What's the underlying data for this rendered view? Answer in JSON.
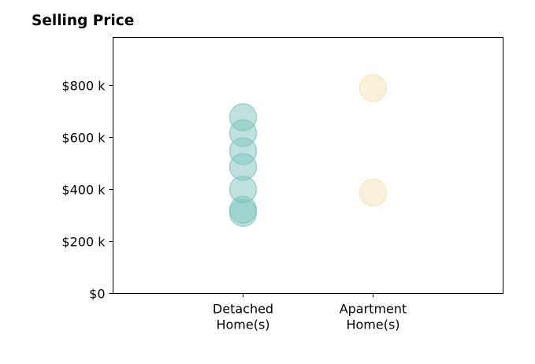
{
  "chart_data": {
    "type": "scatter",
    "title": "Selling Price",
    "xlabel": "",
    "ylabel": "",
    "categories": [
      "Detached\nHome(s)",
      "Apartment\nHome(s)"
    ],
    "y_tick_labels": [
      "$0",
      "$200 k",
      "$400 k",
      "$600 k",
      "$800 k"
    ],
    "y_ticks": [
      0,
      200000,
      400000,
      600000,
      800000
    ],
    "ylim": [
      0,
      985000
    ],
    "xlim": [
      -1,
      2
    ],
    "grid": false,
    "series": [
      {
        "category": "Detached\nHome(s)",
        "color": "#80c5bd",
        "values": [
          678000,
          617000,
          548000,
          487000,
          400000,
          322000,
          310000
        ]
      },
      {
        "category": "Apartment\nHome(s)",
        "color": "#f5e2b3",
        "values": [
          790000,
          388000
        ]
      }
    ]
  }
}
